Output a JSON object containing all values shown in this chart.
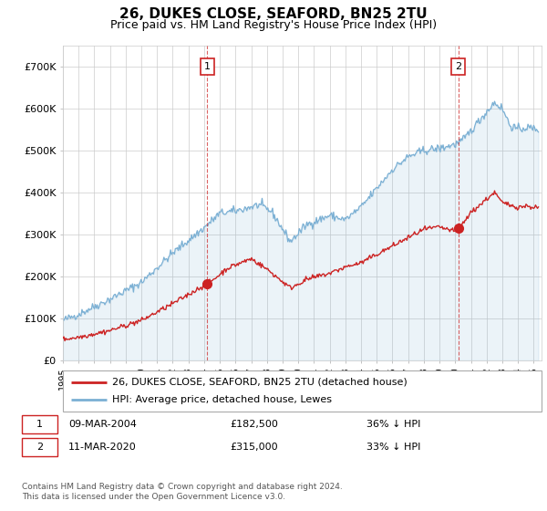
{
  "title": "26, DUKES CLOSE, SEAFORD, BN25 2TU",
  "subtitle": "Price paid vs. HM Land Registry's House Price Index (HPI)",
  "plot_bg_color": "#ffffff",
  "fig_bg_color": "#ffffff",
  "ylim": [
    0,
    750000
  ],
  "yticks": [
    0,
    100000,
    200000,
    300000,
    400000,
    500000,
    600000,
    700000
  ],
  "ytick_labels": [
    "£0",
    "£100K",
    "£200K",
    "£300K",
    "£400K",
    "£500K",
    "£600K",
    "£700K"
  ],
  "legend_entries": [
    "26, DUKES CLOSE, SEAFORD, BN25 2TU (detached house)",
    "HPI: Average price, detached house, Lewes"
  ],
  "legend_colors": [
    "#cc2222",
    "#7bb0d4"
  ],
  "purchase1": {
    "label": "1",
    "date": "09-MAR-2004",
    "price": 182500,
    "pct": "36% ↓ HPI",
    "x_year": 2004.2
  },
  "purchase2": {
    "label": "2",
    "date": "11-MAR-2020",
    "price": 315000,
    "pct": "33% ↓ HPI",
    "x_year": 2020.2
  },
  "footer": "Contains HM Land Registry data © Crown copyright and database right 2024.\nThis data is licensed under the Open Government Licence v3.0.",
  "hpi_color": "#7bb0d4",
  "price_color": "#cc2222",
  "dashed_line_color": "#cc2222",
  "grid_color": "#cccccc",
  "xmin": 1995,
  "xmax": 2025.5
}
